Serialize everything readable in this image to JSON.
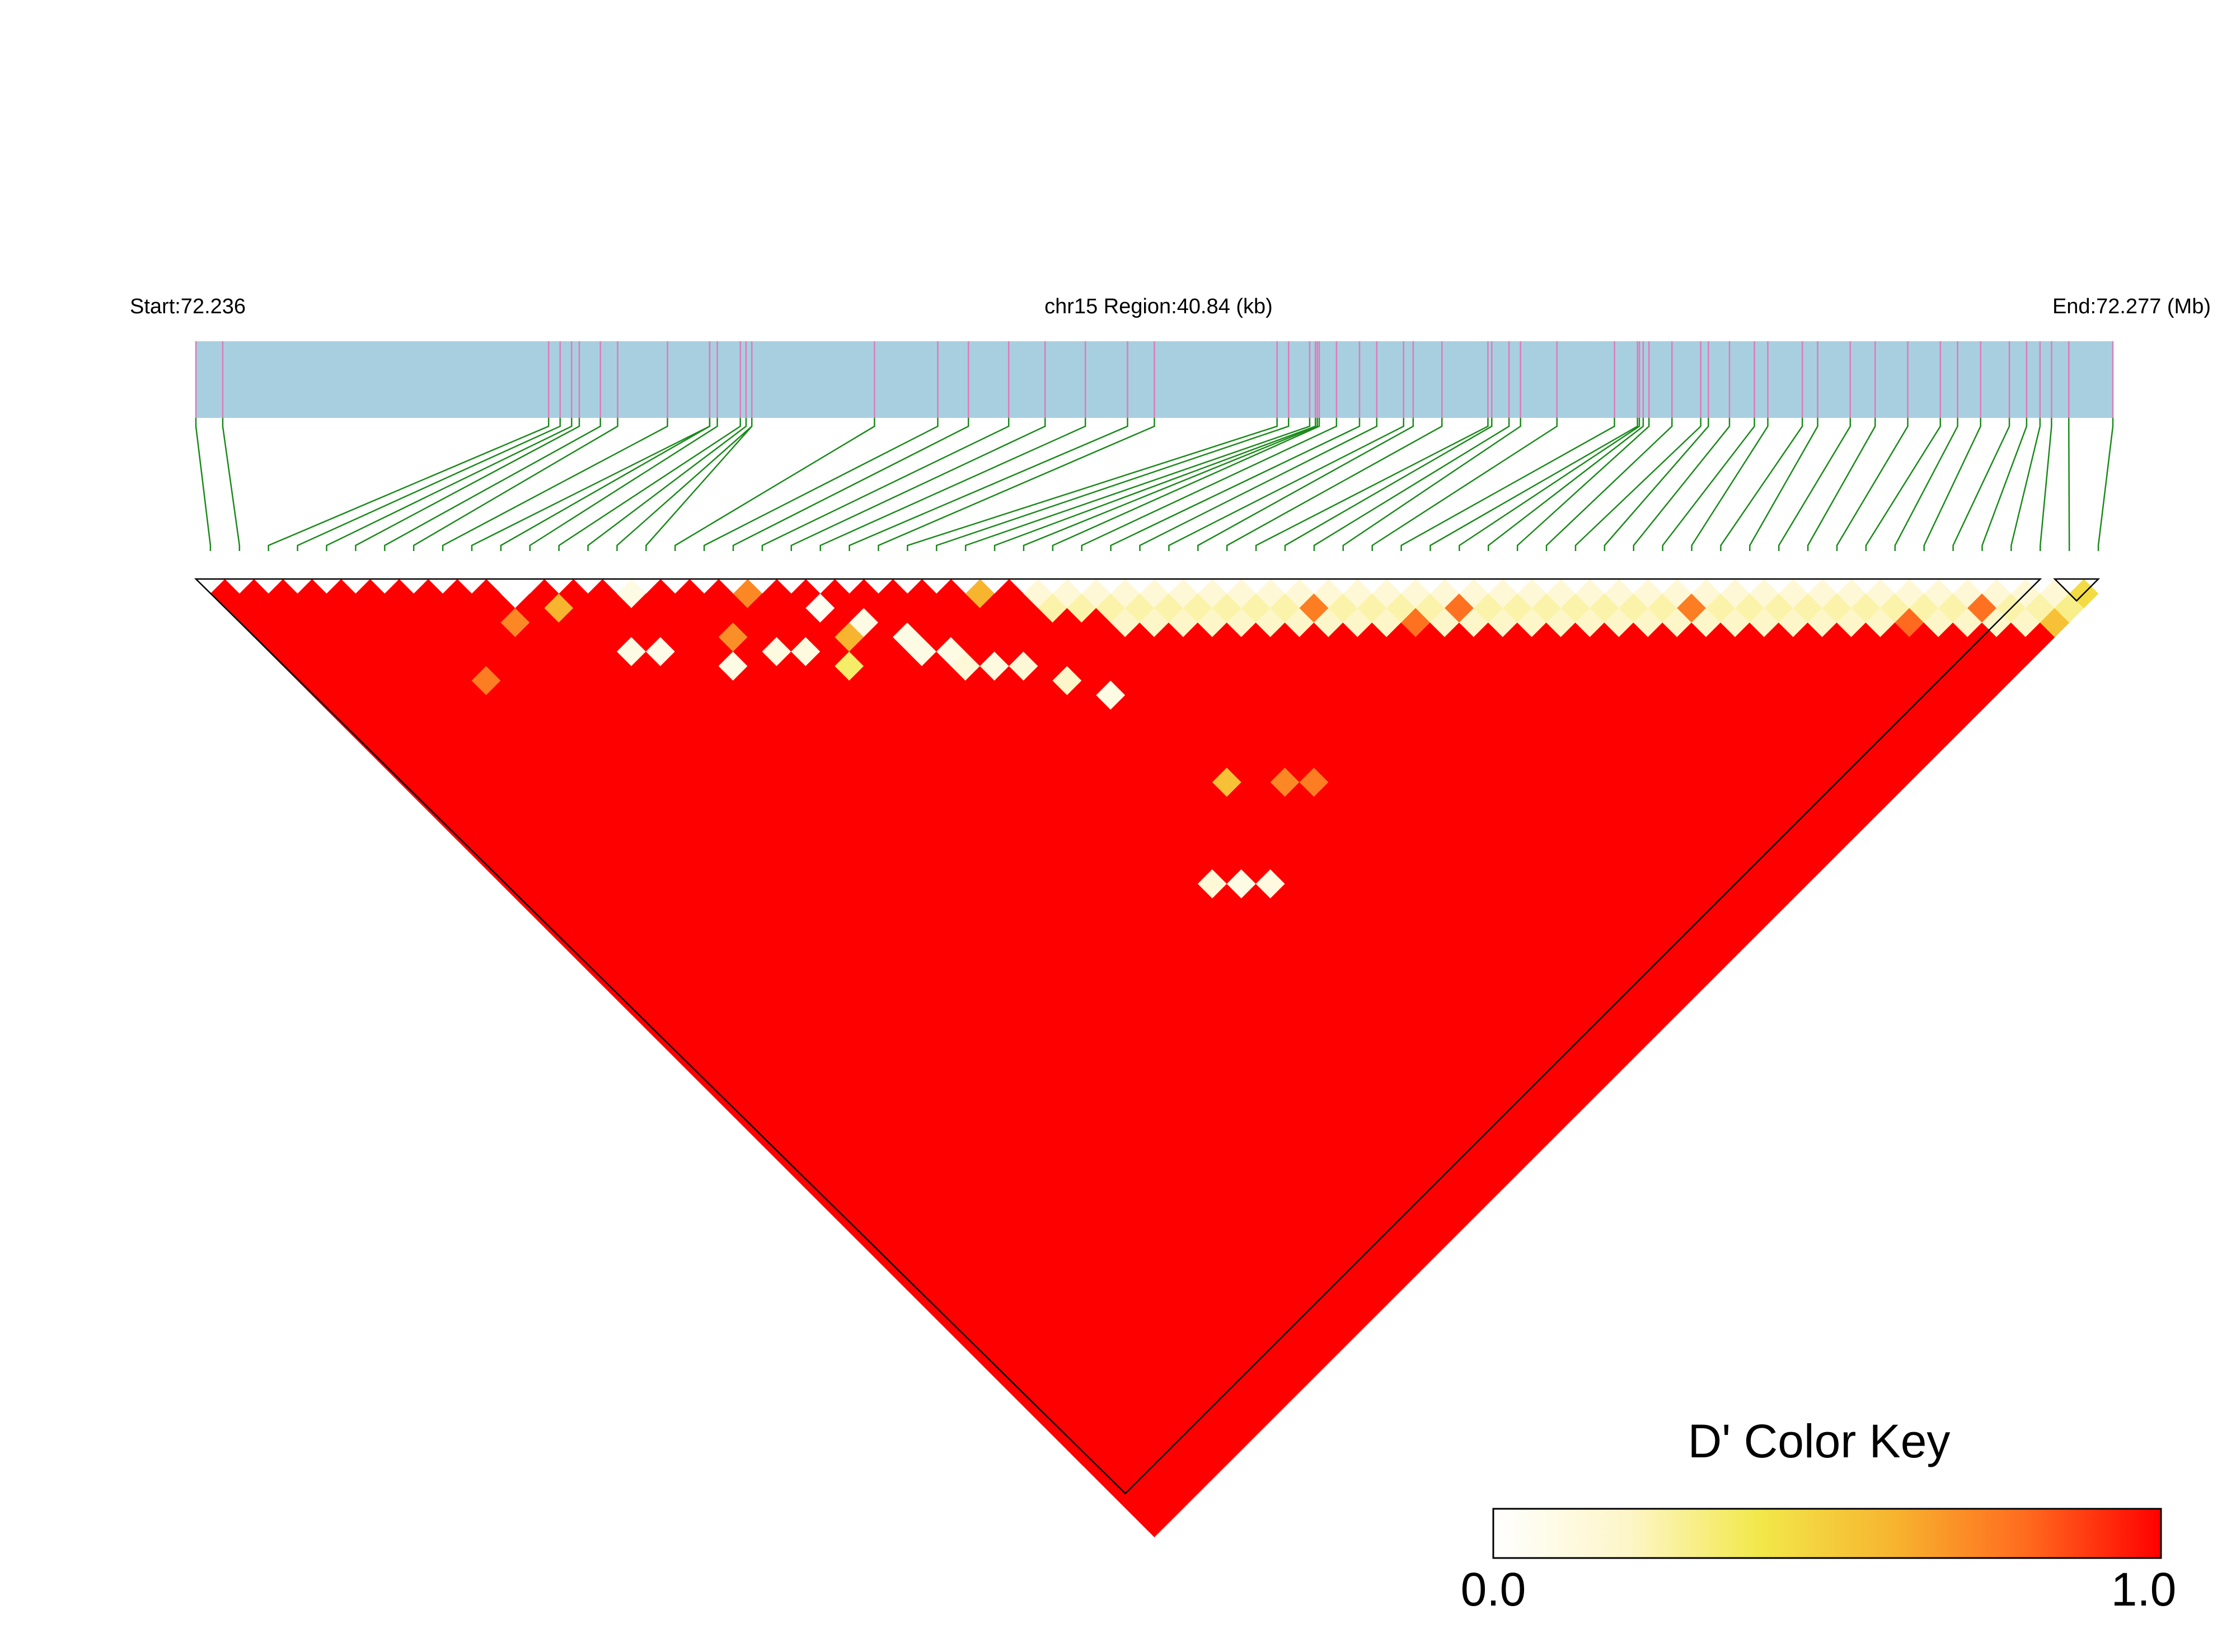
{
  "header": {
    "start_label": "Start:72.236",
    "region_label": "chr15 Region:40.84 (kb)",
    "end_label": "End:72.277 (Mb)"
  },
  "region": {
    "chromosome": "chr15",
    "start_mb": 72.236,
    "end_mb": 72.277,
    "length_kb": 40.84
  },
  "colors": {
    "gene_track": "#a8cfe0",
    "snp_tick": "#e07ab8",
    "connector": "#1a8a1a",
    "high_ld": "#ff0000",
    "mid_ld": "#f5a623",
    "low_ld": "#fff7c0"
  },
  "color_key": {
    "title": "D' Color Key",
    "min_label": "0.0",
    "max_label": "1.0",
    "stops": [
      "#ffffff",
      "#fdf6c9",
      "#f2e84a",
      "#f7b42f",
      "#ff6a1e",
      "#ff0000"
    ]
  },
  "snps": {
    "count": 66,
    "positions_frac": [
      0.0,
      0.014,
      0.184,
      0.19,
      0.196,
      0.2,
      0.211,
      0.22,
      0.246,
      0.268,
      0.268,
      0.272,
      0.284,
      0.287,
      0.29,
      0.29,
      0.354,
      0.387,
      0.403,
      0.424,
      0.443,
      0.464,
      0.486,
      0.5,
      0.564,
      0.57,
      0.581,
      0.584,
      0.585,
      0.586,
      0.595,
      0.607,
      0.616,
      0.63,
      0.635,
      0.65,
      0.674,
      0.676,
      0.685,
      0.691,
      0.71,
      0.74,
      0.752,
      0.753,
      0.755,
      0.758,
      0.77,
      0.785,
      0.789,
      0.8,
      0.813,
      0.82,
      0.838,
      0.846,
      0.863,
      0.876,
      0.893,
      0.91,
      0.919,
      0.931,
      0.946,
      0.955,
      0.962,
      0.968,
      0.977,
      1.0
    ]
  },
  "ld_matrix": {
    "default_dprime": 1.0,
    "exceptions": [
      {
        "i": 10,
        "j": 11,
        "d": 0.0
      },
      {
        "i": 9,
        "j": 12,
        "d": 0.72
      },
      {
        "i": 11,
        "j": 13,
        "d": 0.6
      },
      {
        "i": 14,
        "j": 15,
        "d": 0.1
      },
      {
        "i": 12,
        "j": 17,
        "d": 0.1
      },
      {
        "i": 13,
        "j": 18,
        "d": 0.08
      },
      {
        "i": 16,
        "j": 20,
        "d": 0.7
      },
      {
        "i": 15,
        "j": 21,
        "d": 0.1
      },
      {
        "i": 17,
        "j": 22,
        "d": 0.12
      },
      {
        "i": 18,
        "j": 23,
        "d": 0.12
      },
      {
        "i": 20,
        "j": 22,
        "d": 0.05
      },
      {
        "i": 21,
        "j": 24,
        "d": 0.1
      },
      {
        "i": 22,
        "j": 26,
        "d": 0.1
      },
      {
        "i": 22,
        "j": 27,
        "d": 0.1
      },
      {
        "i": 23,
        "j": 28,
        "d": 0.1
      },
      {
        "i": 23,
        "j": 29,
        "d": 0.15
      },
      {
        "i": 24,
        "j": 30,
        "d": 0.12
      },
      {
        "i": 25,
        "j": 31,
        "d": 0.15
      },
      {
        "i": 26,
        "j": 33,
        "d": 0.2
      },
      {
        "i": 27,
        "j": 35,
        "d": 0.1
      },
      {
        "i": 20,
        "j": 24,
        "d": 0.6
      },
      {
        "i": 19,
        "j": 25,
        "d": 0.35
      },
      {
        "i": 24,
        "j": 45,
        "d": 0.15
      },
      {
        "i": 25,
        "j": 46,
        "d": 0.1
      },
      {
        "i": 26,
        "j": 47,
        "d": 0.12
      },
      {
        "i": 28,
        "j": 42,
        "d": 0.55
      },
      {
        "i": 30,
        "j": 44,
        "d": 0.72
      },
      {
        "i": 31,
        "j": 45,
        "d": 0.75
      },
      {
        "i": 18,
        "j": 19,
        "d": 0.72
      },
      {
        "i": 6,
        "j": 13,
        "d": 0.75
      },
      {
        "i": 26,
        "j": 27,
        "d": 0.6
      },
      {
        "i": 37,
        "j": 39,
        "d": 0.75
      },
      {
        "i": 40,
        "j": 43,
        "d": 0.78
      },
      {
        "i": 42,
        "j": 44,
        "d": 0.78
      },
      {
        "i": 50,
        "j": 52,
        "d": 0.75
      },
      {
        "i": 57,
        "j": 60,
        "d": 0.8
      },
      {
        "i": 60,
        "j": 62,
        "d": 0.78
      },
      {
        "i": 62,
        "j": 65,
        "d": 0.55
      },
      {
        "i": 63,
        "j": 65,
        "d": 0.3
      },
      {
        "i": 64,
        "j": 65,
        "d": 0.45
      }
    ],
    "low_bands": [
      {
        "offset": 1,
        "from": 28,
        "to": 64,
        "d": 0.15
      },
      {
        "offset": 2,
        "from": 28,
        "to": 63,
        "d": 0.25
      },
      {
        "offset": 3,
        "from": 30,
        "to": 62,
        "d": 0.2
      },
      {
        "offset": 1,
        "from": 64,
        "to": 64,
        "d": 0.5
      }
    ]
  }
}
